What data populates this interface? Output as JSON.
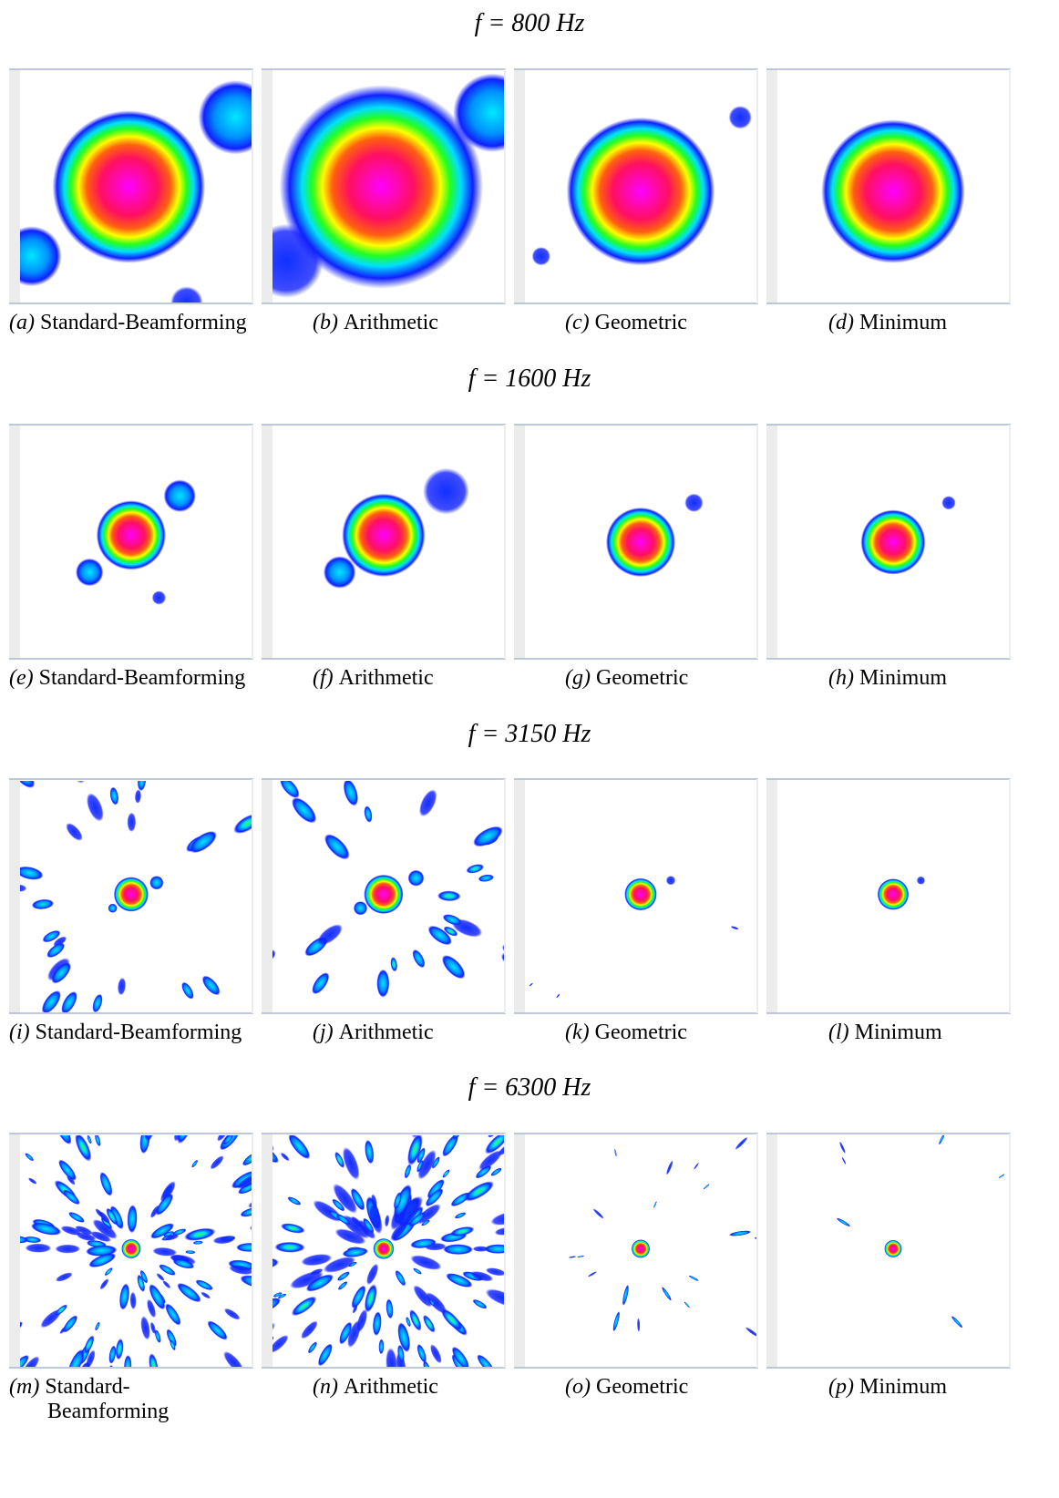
{
  "rows": [
    {
      "title": "f = 800 Hz",
      "panels": [
        {
          "label": "(a)",
          "caption": "Standard-Beamforming"
        },
        {
          "label": "(b)",
          "caption": "Arithmetic"
        },
        {
          "label": "(c)",
          "caption": "Geometric"
        },
        {
          "label": "(d)",
          "caption": "Minimum"
        }
      ]
    },
    {
      "title": "f = 1600 Hz",
      "panels": [
        {
          "label": "(e)",
          "caption": "Standard-Beamforming"
        },
        {
          "label": "(f)",
          "caption": "Arithmetic"
        },
        {
          "label": "(g)",
          "caption": "Geometric"
        },
        {
          "label": "(h)",
          "caption": "Minimum"
        }
      ]
    },
    {
      "title": "f = 3150 Hz",
      "panels": [
        {
          "label": "(i)",
          "caption": "Standard-Beamforming"
        },
        {
          "label": "(j)",
          "caption": "Arithmetic"
        },
        {
          "label": "(k)",
          "caption": "Geometric"
        },
        {
          "label": "(l)",
          "caption": "Minimum"
        }
      ]
    },
    {
      "title": "f = 6300 Hz",
      "panels": [
        {
          "label": "(m)",
          "caption": "Standard-Beamforming"
        },
        {
          "label": "(n)",
          "caption": "Arithmetic"
        },
        {
          "label": "(o)",
          "caption": "Geometric"
        },
        {
          "label": "(p)",
          "caption": "Minimum"
        }
      ]
    }
  ]
}
